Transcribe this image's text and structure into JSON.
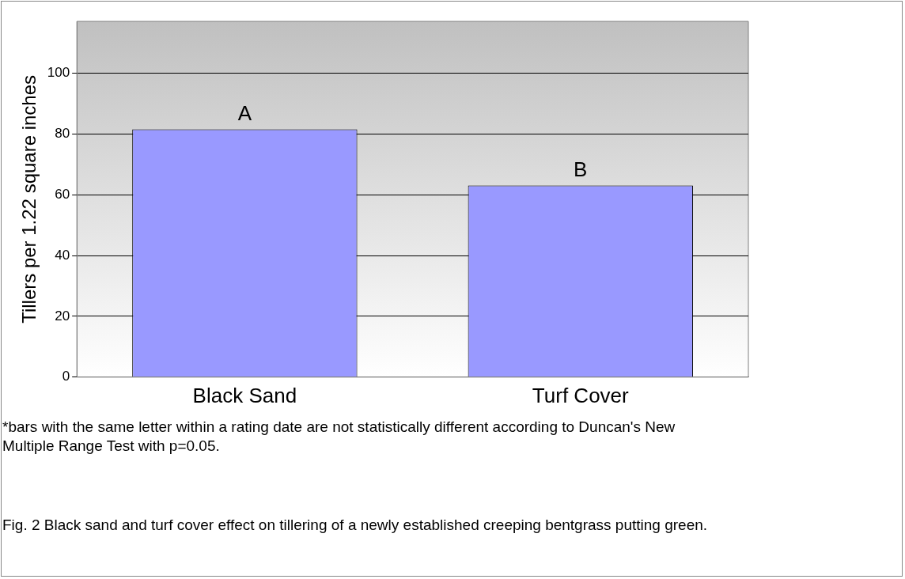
{
  "chart_data": {
    "type": "bar",
    "ylabel": "Tillers per 1.22 square inches",
    "categories": [
      "Black Sand",
      "Turf Cover"
    ],
    "values": [
      81.5,
      63
    ],
    "color": "#9999ff",
    "ylim": [
      0,
      117
    ],
    "yticks": [
      0,
      20,
      40,
      60,
      80,
      100
    ],
    "grid": "y",
    "legend": false,
    "annotations": [
      {
        "text": "A",
        "x": "Black Sand",
        "y": 81.5
      },
      {
        "text": "B",
        "x": "Turf Cover",
        "y": 63
      },
      "*bars with the same letter within a rating date are not statistically different according to Duncan's New Multiple Range Test with p=0.05.",
      "Fig. 2 Black sand and turf cover effect on tillering of a newly established creeping bentgrass putting green."
    ]
  }
}
